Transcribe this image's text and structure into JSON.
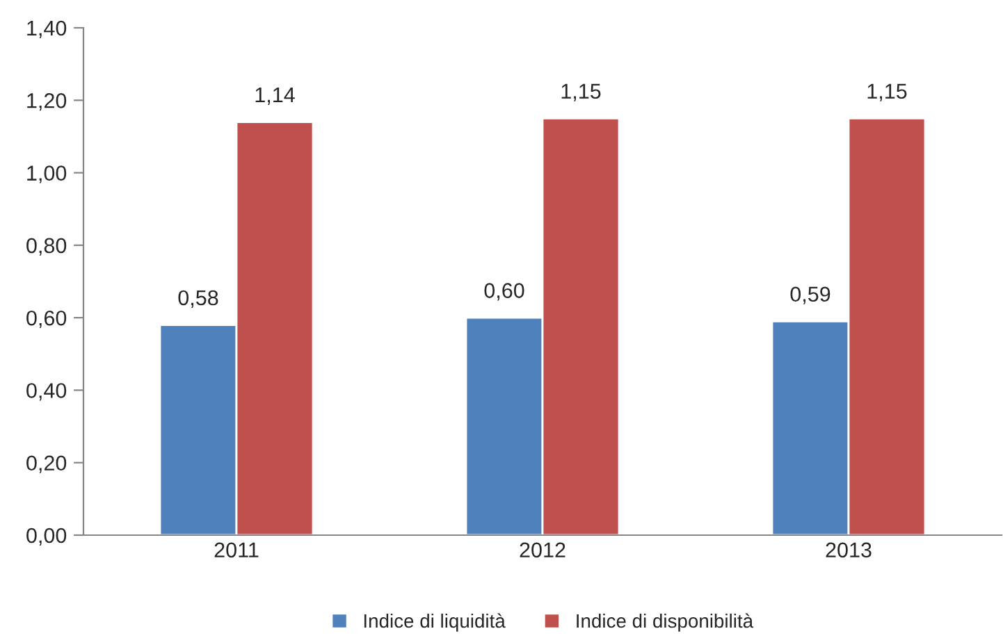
{
  "chart_data": {
    "type": "bar",
    "categories": [
      "2011",
      "2012",
      "2013"
    ],
    "series": [
      {
        "name": "Indice di liquidità",
        "color": "#4f81bd",
        "values": [
          0.58,
          0.6,
          0.59
        ],
        "value_labels": [
          "0,58",
          "0,60",
          "0,59"
        ]
      },
      {
        "name": "Indice di disponibilità",
        "color": "#c0504d",
        "values": [
          1.14,
          1.15,
          1.15
        ],
        "value_labels": [
          "1,14",
          "1,15",
          "1,15"
        ]
      }
    ],
    "ylim": [
      0,
      1.4
    ],
    "yticks": [
      {
        "value": 0,
        "label": "0,00"
      },
      {
        "value": 0.2,
        "label": "0,20"
      },
      {
        "value": 0.4,
        "label": "0,40"
      },
      {
        "value": 0.6,
        "label": "0,60"
      },
      {
        "value": 0.8,
        "label": "0,80"
      },
      {
        "value": 1.0,
        "label": "1,00"
      },
      {
        "value": 1.2,
        "label": "1,20"
      },
      {
        "value": 1.4,
        "label": "1,40"
      }
    ],
    "grid": false,
    "legend": "bottom"
  }
}
